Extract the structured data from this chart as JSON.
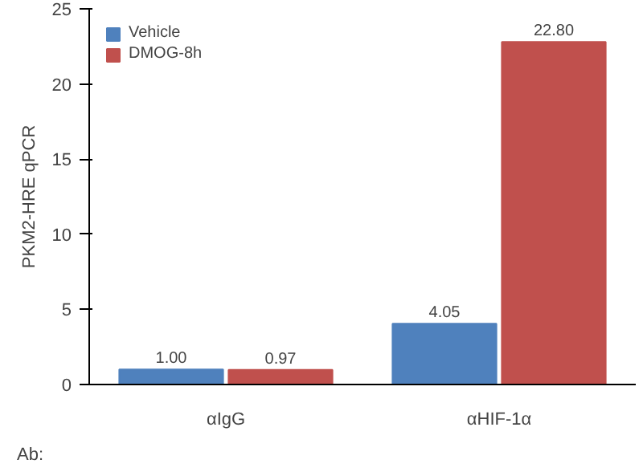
{
  "chart_data": {
    "type": "bar",
    "categories": [
      "αIgG",
      "αHIF-1α"
    ],
    "ylabel": "PKM2-HRE qPCR",
    "ylim": [
      0,
      25
    ],
    "yticks": [
      0,
      5,
      10,
      15,
      20,
      25
    ],
    "grid": false,
    "legend": "top left",
    "annotations": [
      "Ab:"
    ],
    "series": [
      {
        "name": "Vehicle",
        "color": "#4f81bd",
        "values": [
          1.0,
          4.05
        ],
        "value_labels": [
          "1.00",
          "4.05"
        ]
      },
      {
        "name": "DMOG-8h",
        "color": "#c0504d",
        "values": [
          0.97,
          22.8
        ],
        "value_labels": [
          "0.97",
          "22.80"
        ]
      }
    ]
  }
}
